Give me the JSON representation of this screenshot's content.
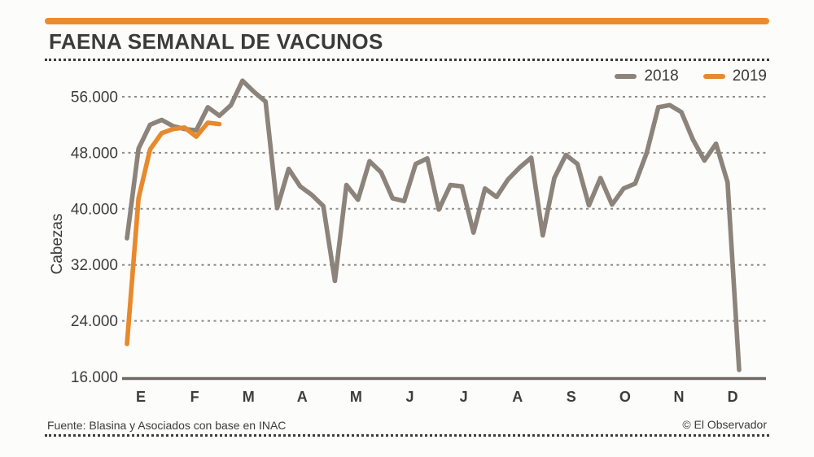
{
  "page": {
    "background": "#FCFCFB",
    "accent_bar_color": "#ED8A2C",
    "text_color": "#3B3B3A",
    "grid_color": "#8F8B87",
    "axis_color": "#6E6761"
  },
  "header": {
    "title": "FAENA SEMANAL DE VACUNOS"
  },
  "legend": {
    "position": "top-right",
    "items": [
      {
        "label": "2018",
        "color": "#8C837B"
      },
      {
        "label": "2019",
        "color": "#E8892C"
      }
    ]
  },
  "footer": {
    "source": "Fuente: Blasina y Asociados con base en INAC",
    "credit": "© El Observador"
  },
  "chart_data": {
    "type": "line",
    "title": "FAENA SEMANAL DE VACUNOS",
    "xlabel": "",
    "ylabel": "Cabezas",
    "x_unit": "week",
    "x_months": [
      "E",
      "F",
      "M",
      "A",
      "M",
      "J",
      "J",
      "A",
      "S",
      "O",
      "N",
      "D"
    ],
    "yticks": [
      16000,
      24000,
      32000,
      40000,
      48000,
      56000
    ],
    "ytick_labels": [
      "16.000",
      "24.000",
      "32.000",
      "40.000",
      "48.000",
      "56.000"
    ],
    "ylim": [
      16000,
      59000
    ],
    "grid": "horizontal-dashed",
    "legend_position": "top-right",
    "series": [
      {
        "name": "2018",
        "color": "#8C837B",
        "values": [
          35800,
          48600,
          52000,
          52700,
          51800,
          51400,
          51200,
          54500,
          53300,
          54800,
          58300,
          56700,
          55300,
          40100,
          45700,
          43200,
          42000,
          40400,
          29700,
          43400,
          41300,
          46800,
          45200,
          41500,
          41100,
          46400,
          47200,
          39900,
          43400,
          43200,
          36600,
          42900,
          41700,
          44200,
          45900,
          47300,
          36200,
          44400,
          47700,
          46400,
          40500,
          44400,
          40600,
          42900,
          43600,
          48000,
          54500,
          54800,
          53800,
          49900,
          46900,
          49300,
          43800,
          17000
        ]
      },
      {
        "name": "2019",
        "color": "#E8892C",
        "values": [
          20700,
          41500,
          48500,
          50800,
          51400,
          51600,
          50300,
          52300,
          52100
        ]
      }
    ]
  }
}
